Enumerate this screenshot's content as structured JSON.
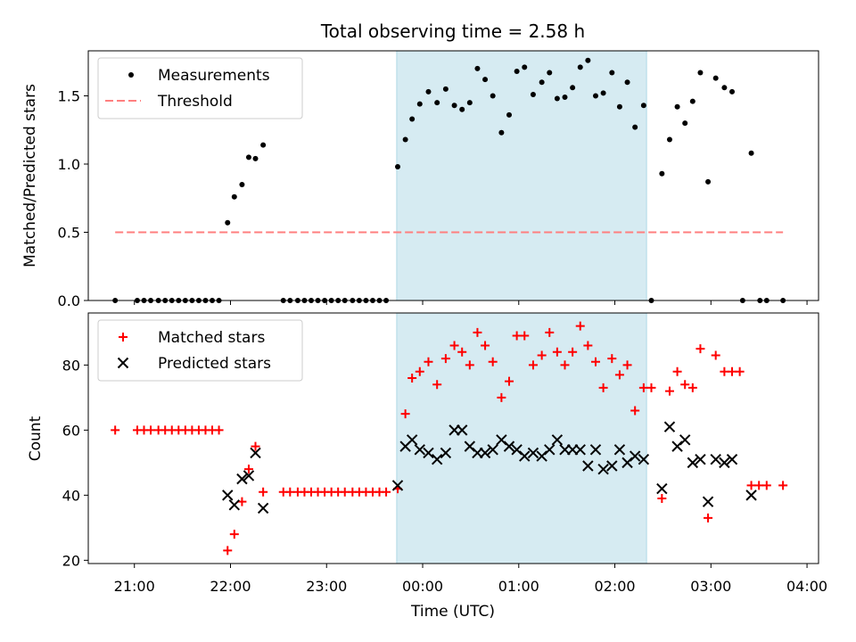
{
  "chart_data": {
    "type": "scatter",
    "title": "Total observing time = 2.58 h",
    "xlabel": "Time (UTC)",
    "x_unit": "hours since 00:00 UTC",
    "xlim": [
      -3.48,
      4.12
    ],
    "xticks": [
      {
        "value": -3,
        "label": "21:00"
      },
      {
        "value": -2,
        "label": "22:00"
      },
      {
        "value": -1,
        "label": "23:00"
      },
      {
        "value": 0,
        "label": "00:00"
      },
      {
        "value": 1,
        "label": "01:00"
      },
      {
        "value": 2,
        "label": "02:00"
      },
      {
        "value": 3,
        "label": "03:00"
      },
      {
        "value": 4,
        "label": "04:00"
      }
    ],
    "shaded_span": {
      "x_start": -0.27,
      "x_end": 2.33,
      "color": "#add8e6"
    },
    "panels": [
      {
        "ylabel": "Matched/Predicted stars",
        "ylim": [
          0,
          1.83
        ],
        "yticks": [
          {
            "value": 0.0,
            "label": "0.0"
          },
          {
            "value": 0.5,
            "label": "0.5"
          },
          {
            "value": 1.0,
            "label": "1.0"
          },
          {
            "value": 1.5,
            "label": "1.5"
          }
        ],
        "legend": {
          "position": "upper-left",
          "entries": [
            {
              "label": "Measurements",
              "marker": "dot",
              "color": "#000000"
            },
            {
              "label": "Threshold",
              "marker": "dashed-line",
              "color": "#ff7f7f"
            }
          ]
        },
        "threshold": {
          "value": 0.5,
          "x_start": -3.2,
          "x_end": 3.75,
          "color": "#ff7f7f"
        },
        "series": [
          {
            "name": "Measurements",
            "color": "#000000",
            "points": [
              [
                -3.2,
                0
              ],
              [
                -2.97,
                0
              ],
              [
                -2.9,
                0
              ],
              [
                -2.83,
                0
              ],
              [
                -2.75,
                0
              ],
              [
                -2.68,
                0
              ],
              [
                -2.61,
                0
              ],
              [
                -2.54,
                0
              ],
              [
                -2.47,
                0
              ],
              [
                -2.4,
                0
              ],
              [
                -2.33,
                0
              ],
              [
                -2.26,
                0
              ],
              [
                -2.19,
                0
              ],
              [
                -2.12,
                0
              ],
              [
                -2.03,
                0.57
              ],
              [
                -1.96,
                0.76
              ],
              [
                -1.88,
                0.85
              ],
              [
                -1.81,
                1.05
              ],
              [
                -1.74,
                1.04
              ],
              [
                -1.66,
                1.14
              ],
              [
                -1.45,
                0
              ],
              [
                -1.38,
                0
              ],
              [
                -1.3,
                0
              ],
              [
                -1.23,
                0
              ],
              [
                -1.16,
                0
              ],
              [
                -1.09,
                0
              ],
              [
                -1.02,
                0
              ],
              [
                -0.95,
                0
              ],
              [
                -0.88,
                0
              ],
              [
                -0.81,
                0
              ],
              [
                -0.73,
                0
              ],
              [
                -0.66,
                0
              ],
              [
                -0.59,
                0
              ],
              [
                -0.52,
                0
              ],
              [
                -0.45,
                0
              ],
              [
                -0.38,
                0
              ],
              [
                -0.26,
                0.98
              ],
              [
                -0.18,
                1.18
              ],
              [
                -0.11,
                1.33
              ],
              [
                -0.03,
                1.44
              ],
              [
                0.06,
                1.53
              ],
              [
                0.15,
                1.45
              ],
              [
                0.24,
                1.55
              ],
              [
                0.33,
                1.43
              ],
              [
                0.41,
                1.4
              ],
              [
                0.49,
                1.45
              ],
              [
                0.57,
                1.7
              ],
              [
                0.65,
                1.62
              ],
              [
                0.73,
                1.5
              ],
              [
                0.82,
                1.23
              ],
              [
                0.9,
                1.36
              ],
              [
                0.98,
                1.68
              ],
              [
                1.06,
                1.71
              ],
              [
                1.15,
                1.51
              ],
              [
                1.24,
                1.6
              ],
              [
                1.32,
                1.67
              ],
              [
                1.4,
                1.48
              ],
              [
                1.48,
                1.49
              ],
              [
                1.56,
                1.56
              ],
              [
                1.64,
                1.71
              ],
              [
                1.72,
                1.76
              ],
              [
                1.8,
                1.5
              ],
              [
                1.88,
                1.52
              ],
              [
                1.97,
                1.67
              ],
              [
                2.05,
                1.42
              ],
              [
                2.13,
                1.6
              ],
              [
                2.21,
                1.27
              ],
              [
                2.3,
                1.43
              ],
              [
                2.38,
                0
              ],
              [
                2.49,
                0.93
              ],
              [
                2.57,
                1.18
              ],
              [
                2.65,
                1.42
              ],
              [
                2.73,
                1.3
              ],
              [
                2.81,
                1.46
              ],
              [
                2.89,
                1.67
              ],
              [
                2.97,
                0.87
              ],
              [
                3.05,
                1.63
              ],
              [
                3.14,
                1.56
              ],
              [
                3.22,
                1.53
              ],
              [
                3.33,
                0
              ],
              [
                3.42,
                1.08
              ],
              [
                3.51,
                0
              ],
              [
                3.58,
                0
              ],
              [
                3.75,
                0
              ]
            ]
          }
        ]
      },
      {
        "ylabel": "Count",
        "ylim": [
          19,
          96
        ],
        "yticks": [
          {
            "value": 20,
            "label": "20"
          },
          {
            "value": 40,
            "label": "40"
          },
          {
            "value": 60,
            "label": "60"
          },
          {
            "value": 80,
            "label": "80"
          }
        ],
        "legend": {
          "position": "upper-left",
          "entries": [
            {
              "label": "Matched stars",
              "marker": "plus",
              "color": "#ff0000"
            },
            {
              "label": "Predicted stars",
              "marker": "x",
              "color": "#000000"
            }
          ]
        },
        "series": [
          {
            "name": "Matched stars",
            "marker": "plus",
            "color": "#ff0000",
            "points": [
              [
                -3.2,
                60
              ],
              [
                -2.97,
                60
              ],
              [
                -2.9,
                60
              ],
              [
                -2.83,
                60
              ],
              [
                -2.75,
                60
              ],
              [
                -2.68,
                60
              ],
              [
                -2.61,
                60
              ],
              [
                -2.54,
                60
              ],
              [
                -2.47,
                60
              ],
              [
                -2.4,
                60
              ],
              [
                -2.33,
                60
              ],
              [
                -2.26,
                60
              ],
              [
                -2.19,
                60
              ],
              [
                -2.12,
                60
              ],
              [
                -2.03,
                23
              ],
              [
                -1.96,
                28
              ],
              [
                -1.88,
                38
              ],
              [
                -1.81,
                48
              ],
              [
                -1.74,
                55
              ],
              [
                -1.66,
                41
              ],
              [
                -1.45,
                41
              ],
              [
                -1.38,
                41
              ],
              [
                -1.3,
                41
              ],
              [
                -1.23,
                41
              ],
              [
                -1.16,
                41
              ],
              [
                -1.09,
                41
              ],
              [
                -1.02,
                41
              ],
              [
                -0.95,
                41
              ],
              [
                -0.88,
                41
              ],
              [
                -0.81,
                41
              ],
              [
                -0.73,
                41
              ],
              [
                -0.66,
                41
              ],
              [
                -0.59,
                41
              ],
              [
                -0.52,
                41
              ],
              [
                -0.45,
                41
              ],
              [
                -0.38,
                41
              ],
              [
                -0.26,
                42
              ],
              [
                -0.18,
                65
              ],
              [
                -0.11,
                76
              ],
              [
                -0.03,
                78
              ],
              [
                0.06,
                81
              ],
              [
                0.15,
                74
              ],
              [
                0.24,
                82
              ],
              [
                0.33,
                86
              ],
              [
                0.41,
                84
              ],
              [
                0.49,
                80
              ],
              [
                0.57,
                90
              ],
              [
                0.65,
                86
              ],
              [
                0.73,
                81
              ],
              [
                0.82,
                70
              ],
              [
                0.9,
                75
              ],
              [
                0.98,
                89
              ],
              [
                1.06,
                89
              ],
              [
                1.15,
                80
              ],
              [
                1.24,
                83
              ],
              [
                1.32,
                90
              ],
              [
                1.4,
                84
              ],
              [
                1.48,
                80
              ],
              [
                1.56,
                84
              ],
              [
                1.64,
                92
              ],
              [
                1.72,
                86
              ],
              [
                1.8,
                81
              ],
              [
                1.88,
                73
              ],
              [
                1.97,
                82
              ],
              [
                2.05,
                77
              ],
              [
                2.13,
                80
              ],
              [
                2.21,
                66
              ],
              [
                2.3,
                73
              ],
              [
                2.38,
                73
              ],
              [
                2.49,
                39
              ],
              [
                2.57,
                72
              ],
              [
                2.65,
                78
              ],
              [
                2.73,
                74
              ],
              [
                2.81,
                73
              ],
              [
                2.89,
                85
              ],
              [
                2.97,
                33
              ],
              [
                3.05,
                83
              ],
              [
                3.14,
                78
              ],
              [
                3.22,
                78
              ],
              [
                3.3,
                78
              ],
              [
                3.42,
                43
              ],
              [
                3.5,
                43
              ],
              [
                3.58,
                43
              ],
              [
                3.75,
                43
              ]
            ]
          },
          {
            "name": "Predicted stars",
            "marker": "x",
            "color": "#000000",
            "points": [
              [
                -2.03,
                40
              ],
              [
                -1.96,
                37
              ],
              [
                -1.88,
                45
              ],
              [
                -1.81,
                46
              ],
              [
                -1.74,
                53
              ],
              [
                -1.66,
                36
              ],
              [
                -0.26,
                43
              ],
              [
                -0.18,
                55
              ],
              [
                -0.11,
                57
              ],
              [
                -0.03,
                54
              ],
              [
                0.06,
                53
              ],
              [
                0.15,
                51
              ],
              [
                0.24,
                53
              ],
              [
                0.33,
                60
              ],
              [
                0.41,
                60
              ],
              [
                0.49,
                55
              ],
              [
                0.57,
                53
              ],
              [
                0.65,
                53
              ],
              [
                0.73,
                54
              ],
              [
                0.82,
                57
              ],
              [
                0.9,
                55
              ],
              [
                0.98,
                54
              ],
              [
                1.06,
                52
              ],
              [
                1.15,
                53
              ],
              [
                1.24,
                52
              ],
              [
                1.32,
                54
              ],
              [
                1.4,
                57
              ],
              [
                1.48,
                54
              ],
              [
                1.56,
                54
              ],
              [
                1.64,
                54
              ],
              [
                1.72,
                49
              ],
              [
                1.8,
                54
              ],
              [
                1.88,
                48
              ],
              [
                1.97,
                49
              ],
              [
                2.05,
                54
              ],
              [
                2.13,
                50
              ],
              [
                2.21,
                52
              ],
              [
                2.3,
                51
              ],
              [
                2.49,
                42
              ],
              [
                2.57,
                61
              ],
              [
                2.65,
                55
              ],
              [
                2.73,
                57
              ],
              [
                2.81,
                50
              ],
              [
                2.89,
                51
              ],
              [
                2.97,
                38
              ],
              [
                3.05,
                51
              ],
              [
                3.14,
                50
              ],
              [
                3.22,
                51
              ],
              [
                3.42,
                40
              ]
            ]
          }
        ]
      }
    ]
  }
}
